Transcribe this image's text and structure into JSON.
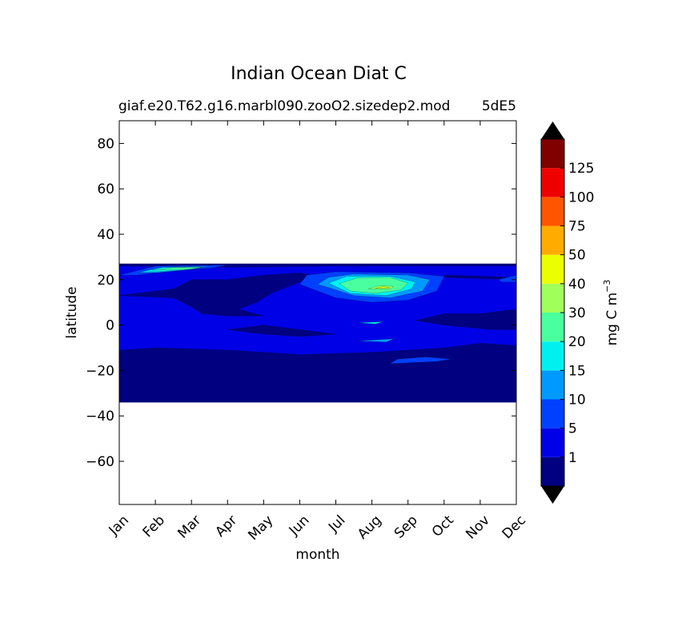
{
  "chart_data": {
    "type": "heatmap",
    "title": "Indian Ocean Diat C",
    "subtitle_left": "giaf.e20.T62.g16.marbl090.zooO2.sizedep2.mod",
    "subtitle_right": "5dE5",
    "xlabel": "month",
    "ylabel": "latitude",
    "x_categories": [
      "Jan",
      "Feb",
      "Mar",
      "Apr",
      "May",
      "Jun",
      "Jul",
      "Aug",
      "Sep",
      "Oct",
      "Nov",
      "Dec"
    ],
    "y_ticks": [
      80,
      60,
      40,
      20,
      0,
      -20,
      -40,
      -60
    ],
    "y_tick_labels": [
      "80",
      "60",
      "40",
      "20",
      "0",
      "−20",
      "−40",
      "−60"
    ],
    "ylim": [
      -79,
      90
    ],
    "xlim": [
      0,
      11
    ],
    "data_lat_range": [
      -34,
      27
    ],
    "colorbar": {
      "label": "mg C m",
      "label_exponent": "−3",
      "levels": [
        1,
        5,
        10,
        15,
        20,
        30,
        40,
        50,
        75,
        100,
        125
      ],
      "level_labels": [
        "1",
        "5",
        "10",
        "15",
        "20",
        "30",
        "40",
        "50",
        "75",
        "100",
        "125"
      ],
      "colors": [
        "#000080",
        "#0000e6",
        "#0040ff",
        "#0099ff",
        "#00f0f0",
        "#49ff9e",
        "#a0ff5a",
        "#ecff00",
        "#ffab00",
        "#ff5400",
        "#ef0000",
        "#800000"
      ],
      "extend": "both",
      "over_color": "#000000",
      "under_color": "#000000"
    },
    "background_color": "#0000e6",
    "regions": [
      {
        "level": 0,
        "points": [
          [
            0,
            27
          ],
          [
            11,
            27
          ],
          [
            11,
            26
          ],
          [
            6,
            26
          ],
          [
            3,
            25.5
          ],
          [
            0,
            26
          ]
        ]
      },
      {
        "level": 0,
        "points": [
          [
            0,
            -34
          ],
          [
            11,
            -34
          ],
          [
            11,
            -9
          ],
          [
            10,
            -8
          ],
          [
            9,
            -10
          ],
          [
            7,
            -12
          ],
          [
            5,
            -13
          ],
          [
            3,
            -11
          ],
          [
            1,
            -10
          ],
          [
            0,
            -11
          ]
        ]
      },
      {
        "level": 0,
        "points": [
          [
            0,
            13
          ],
          [
            1.5,
            12
          ],
          [
            2,
            8
          ],
          [
            2.3,
            5
          ],
          [
            3,
            4
          ],
          [
            4,
            4
          ],
          [
            3.3,
            7
          ],
          [
            3.8,
            10
          ],
          [
            4.2,
            14
          ],
          [
            5,
            19
          ],
          [
            5.3,
            22
          ],
          [
            5,
            23
          ],
          [
            4,
            22
          ],
          [
            3,
            20
          ],
          [
            2,
            20
          ],
          [
            1.5,
            16
          ],
          [
            0.5,
            14
          ]
        ]
      },
      {
        "level": 0,
        "points": [
          [
            3,
            -2
          ],
          [
            4,
            0
          ],
          [
            5,
            -2
          ],
          [
            6,
            -4
          ],
          [
            5,
            -5
          ],
          [
            4,
            -4
          ]
        ]
      },
      {
        "level": 0,
        "points": [
          [
            8.2,
            2
          ],
          [
            9,
            5
          ],
          [
            10,
            5
          ],
          [
            11,
            7
          ],
          [
            11,
            -2
          ],
          [
            10.3,
            -2
          ],
          [
            9,
            0
          ]
        ]
      },
      {
        "level": 0,
        "points": [
          [
            9,
            22
          ],
          [
            10,
            21.5
          ],
          [
            11,
            21
          ],
          [
            11,
            20
          ],
          [
            10,
            20.5
          ],
          [
            9,
            21
          ]
        ]
      },
      {
        "level": 2,
        "points": [
          [
            0,
            22
          ],
          [
            1,
            26
          ],
          [
            3,
            26.5
          ],
          [
            2.5,
            25
          ],
          [
            1.5,
            24
          ],
          [
            0.5,
            22
          ]
        ]
      },
      {
        "level": 2,
        "points": [
          [
            5,
            18
          ],
          [
            5.2,
            22
          ],
          [
            6,
            23.5
          ],
          [
            8,
            23
          ],
          [
            9,
            21.5
          ],
          [
            8.8,
            15
          ],
          [
            8,
            11
          ],
          [
            7,
            10
          ],
          [
            6,
            12
          ]
        ]
      },
      {
        "level": 2,
        "points": [
          [
            7.5,
            -17
          ],
          [
            8.8,
            -16
          ],
          [
            9.2,
            -15
          ],
          [
            8.5,
            -14
          ],
          [
            7.7,
            -15
          ]
        ]
      },
      {
        "level": 2,
        "points": [
          [
            10.5,
            20
          ],
          [
            11,
            22
          ],
          [
            11,
            19
          ],
          [
            10.6,
            19
          ]
        ]
      },
      {
        "level": 3,
        "points": [
          [
            0.5,
            23
          ],
          [
            1.2,
            25.5
          ],
          [
            2.5,
            26
          ],
          [
            2,
            24.5
          ],
          [
            1,
            23
          ]
        ]
      },
      {
        "level": 3,
        "points": [
          [
            5.5,
            18
          ],
          [
            5.8,
            21
          ],
          [
            6.5,
            22.5
          ],
          [
            8,
            22
          ],
          [
            8.6,
            20
          ],
          [
            8.4,
            15
          ],
          [
            7.5,
            12
          ],
          [
            6.5,
            13
          ]
        ]
      },
      {
        "level": 3,
        "points": [
          [
            6.6,
            -7
          ],
          [
            7.6,
            -6
          ],
          [
            7.4,
            -7.5
          ]
        ]
      },
      {
        "level": 4,
        "points": [
          [
            0.6,
            23.5
          ],
          [
            1.2,
            25.4
          ],
          [
            2.3,
            25.6
          ],
          [
            1.8,
            24.3
          ],
          [
            1,
            23.5
          ]
        ]
      },
      {
        "level": 4,
        "points": [
          [
            5.8,
            18.5
          ],
          [
            6.3,
            21.5
          ],
          [
            7.5,
            21.5
          ],
          [
            8.2,
            19
          ],
          [
            8.1,
            16
          ],
          [
            7.4,
            13
          ],
          [
            6.4,
            14
          ]
        ]
      },
      {
        "level": 4,
        "points": [
          [
            6.6,
            1
          ],
          [
            7.3,
            1.5
          ],
          [
            7.1,
            0.5
          ]
        ]
      },
      {
        "level": 5,
        "points": [
          [
            0.9,
            24.2
          ],
          [
            1.6,
            25.4
          ],
          [
            2.3,
            25.4
          ],
          [
            1.8,
            24.4
          ]
        ]
      },
      {
        "level": 5,
        "points": [
          [
            6.1,
            18.3
          ],
          [
            6.6,
            20.8
          ],
          [
            7.5,
            21
          ],
          [
            8,
            18.5
          ],
          [
            7.8,
            15.5
          ],
          [
            7.1,
            14
          ],
          [
            6.4,
            15
          ]
        ]
      },
      {
        "level": 6,
        "points": [
          [
            6.9,
            16
          ],
          [
            7.2,
            17.3
          ],
          [
            7.6,
            17.1
          ],
          [
            7.5,
            15.8
          ]
        ]
      },
      {
        "level": 7,
        "points": [
          [
            7.1,
            16.2
          ],
          [
            7.3,
            16.9
          ],
          [
            7.5,
            16.4
          ]
        ]
      }
    ]
  }
}
